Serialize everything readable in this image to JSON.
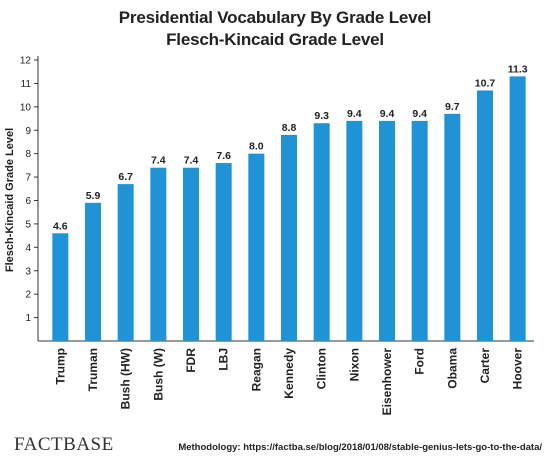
{
  "chart_data": {
    "type": "bar",
    "title": "Presidential Vocabulary By Grade Level",
    "subtitle": "Flesch-Kincaid Grade Level",
    "xlabel": "",
    "ylabel": "Flesch-Kincaid Grade Level",
    "ylim": [
      0,
      12
    ],
    "yticks": [
      1,
      2,
      3,
      4,
      5,
      6,
      7,
      8,
      9,
      10,
      11,
      12
    ],
    "categories": [
      "Trump",
      "Truman",
      "Bush (HW)",
      "Bush (W)",
      "FDR",
      "LBJ",
      "Reagan",
      "Kennedy",
      "Clinton",
      "Nixon",
      "Eisenhower",
      "Ford",
      "Obama",
      "Carter",
      "Hoover"
    ],
    "values": [
      4.6,
      5.9,
      6.7,
      7.4,
      7.4,
      7.6,
      8.0,
      8.8,
      9.3,
      9.4,
      9.4,
      9.4,
      9.7,
      10.7,
      11.3
    ],
    "value_labels": [
      "4.6",
      "5.9",
      "6.7",
      "7.4",
      "7.4",
      "7.6",
      "8.0",
      "8.8",
      "9.3",
      "9.4",
      "9.4",
      "9.4",
      "9.7",
      "10.7",
      "11.3"
    ],
    "bar_color": "#1f93d6",
    "grid": false,
    "legend": "none"
  },
  "footer": {
    "brand": "FACTBASE",
    "methodology": "Methodology: https://factba.se/blog/2018/01/08/stable-genius-lets-go-to-the-data/"
  }
}
